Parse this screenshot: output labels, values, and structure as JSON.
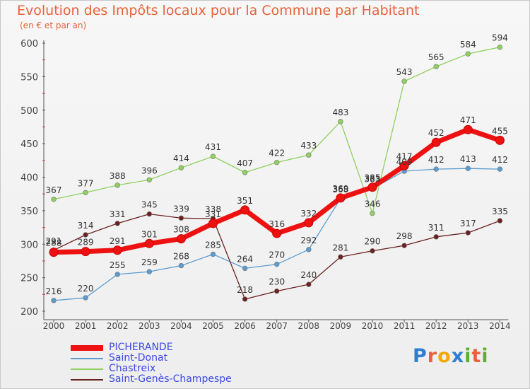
{
  "title": "Evolution des Impôts locaux pour la Commune par Habitant",
  "subtitle": "(en € et par an)",
  "logo": {
    "text": "Proxiti",
    "colors": [
      "#2e7fd4",
      "#e8613a",
      "#f5a800",
      "#2e7fd4",
      "#5cb030",
      "#e8613a",
      "#5cb030"
    ]
  },
  "chart_data": {
    "type": "line",
    "title": "Evolution des Impôts locaux pour la Commune par Habitant",
    "subtitle": "(en € et par an)",
    "x": [
      "2000",
      "2001",
      "2002",
      "2003",
      "2004",
      "2005",
      "2006",
      "2007",
      "2008",
      "2009",
      "2010",
      "2011",
      "2012",
      "2013",
      "2014"
    ],
    "ylim": [
      200,
      600
    ],
    "yticks": [
      200,
      250,
      300,
      350,
      400,
      450,
      500,
      550,
      600
    ],
    "grid": false,
    "legend_position": "bottom-left",
    "series": [
      {
        "name": "Chastreix",
        "color": "#8fd060",
        "values": [
          367,
          377,
          388,
          396,
          414,
          431,
          407,
          422,
          433,
          483,
          346,
          543,
          565,
          584,
          594
        ]
      },
      {
        "name": "Saint-Donat",
        "color": "#5a9bd0",
        "values": [
          216,
          220,
          255,
          259,
          268,
          285,
          264,
          270,
          292,
          368,
          383,
          409,
          412,
          413,
          412
        ]
      },
      {
        "name": "Saint-Genès-Champespe",
        "color": "#6b2020",
        "values": [
          291,
          314,
          331,
          345,
          339,
          338,
          218,
          230,
          240,
          281,
          290,
          298,
          311,
          317,
          335
        ]
      },
      {
        "name": "PICHERANDE",
        "color": "#ee1111",
        "values": [
          288,
          289,
          291,
          301,
          308,
          331,
          351,
          316,
          332,
          369,
          385,
          417,
          452,
          471,
          455
        ]
      }
    ]
  }
}
